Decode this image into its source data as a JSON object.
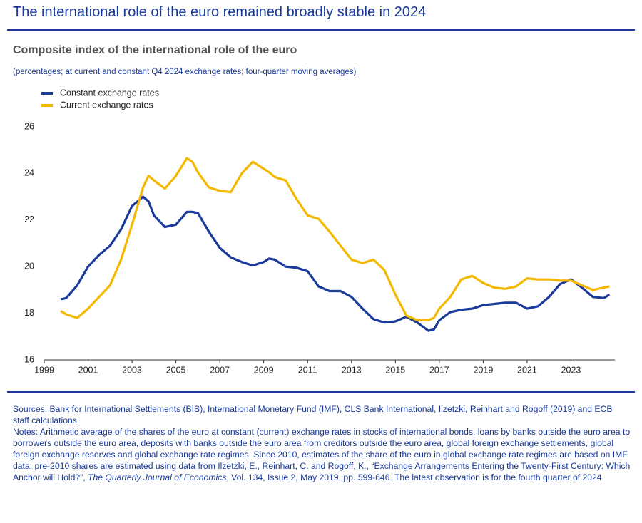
{
  "header": {
    "title": "The international role of the euro remained broadly stable in 2024"
  },
  "chart_data": {
    "type": "line",
    "title": "Composite index of the international role of the euro",
    "subtitle": "(percentages; at current and constant Q4 2024 exchange rates; four-quarter moving averages)",
    "x": [
      1999.75,
      2000,
      2000.5,
      2001,
      2001.5,
      2002,
      2002.5,
      2003,
      2003.5,
      2003.75,
      2004,
      2004.5,
      2005,
      2005.5,
      2005.75,
      2006,
      2006.5,
      2007,
      2007.5,
      2008,
      2008.5,
      2009,
      2009.25,
      2009.5,
      2010,
      2010.5,
      2011,
      2011.5,
      2012,
      2012.5,
      2013,
      2013.5,
      2014,
      2014.5,
      2015,
      2015.5,
      2016,
      2016.5,
      2016.75,
      2017,
      2017.5,
      2018,
      2018.5,
      2019,
      2019.5,
      2020,
      2020.5,
      2021,
      2021.5,
      2022,
      2022.5,
      2023,
      2023.5,
      2024,
      2024.5,
      2024.75
    ],
    "series": [
      {
        "name": "Constant exchange rates",
        "color": "#1a3a9c",
        "values": [
          18.6,
          18.65,
          19.2,
          20.0,
          20.5,
          20.9,
          21.6,
          22.6,
          23.0,
          22.8,
          22.2,
          21.7,
          21.8,
          22.35,
          22.35,
          22.3,
          21.5,
          20.8,
          20.4,
          20.2,
          20.05,
          20.2,
          20.35,
          20.3,
          20.0,
          19.95,
          19.8,
          19.15,
          18.95,
          18.95,
          18.7,
          18.2,
          17.75,
          17.6,
          17.65,
          17.85,
          17.6,
          17.25,
          17.3,
          17.7,
          18.05,
          18.15,
          18.2,
          18.35,
          18.4,
          18.45,
          18.45,
          18.2,
          18.3,
          18.7,
          19.25,
          19.45,
          19.1,
          18.7,
          18.65,
          18.8
        ]
      },
      {
        "name": "Current exchange rates",
        "color": "#f5b800",
        "values": [
          18.1,
          17.95,
          17.8,
          18.2,
          18.7,
          19.2,
          20.3,
          21.8,
          23.4,
          23.9,
          23.7,
          23.35,
          23.9,
          24.65,
          24.5,
          24.05,
          23.4,
          23.25,
          23.2,
          24.0,
          24.5,
          24.2,
          24.05,
          23.85,
          23.7,
          22.9,
          22.2,
          22.05,
          21.5,
          20.9,
          20.3,
          20.15,
          20.3,
          19.85,
          18.8,
          17.9,
          17.7,
          17.7,
          17.8,
          18.2,
          18.7,
          19.45,
          19.6,
          19.3,
          19.1,
          19.05,
          19.15,
          19.5,
          19.45,
          19.45,
          19.4,
          19.4,
          19.2,
          19.0,
          19.1,
          19.15
        ]
      }
    ],
    "xlim": [
      1999,
      2025
    ],
    "xticks": [
      1999,
      2001,
      2003,
      2005,
      2007,
      2009,
      2011,
      2013,
      2015,
      2017,
      2019,
      2021,
      2023
    ],
    "ylim": [
      16,
      26
    ],
    "yticks": [
      16,
      18,
      20,
      22,
      24,
      26
    ],
    "grid": false,
    "legend": "top-left"
  },
  "footer": {
    "sources": "Sources: Bank for International Settlements (BIS), International Monetary Fund (IMF), CLS Bank International, Ilzetzki, Reinhart and Rogoff (2019) and ECB staff calculations.",
    "notes_1": "Notes: Arithmetic average of the shares of the euro at constant (current) exchange rates in stocks of international bonds, loans by banks outside the euro area to borrowers outside the euro area, deposits with banks outside the euro area from creditors outside the euro area, global foreign exchange settlements, global foreign exchange reserves and global exchange rate regimes. Since 2010, estimates of the share of the euro in global exchange rate regimes are based on IMF data; pre-2010 shares are estimated using data from Ilzetzki, E., Reinhart, C. and Rogoff, K., “Exchange Arrangements Entering the Twenty-First Century: Which Anchor will Hold?”,",
    "journal": "The Quarterly Journal of Economics",
    "notes_2": ", Vol. 134, Issue 2, May 2019, pp. 599-646. The latest observation is for the fourth quarter of 2024."
  }
}
